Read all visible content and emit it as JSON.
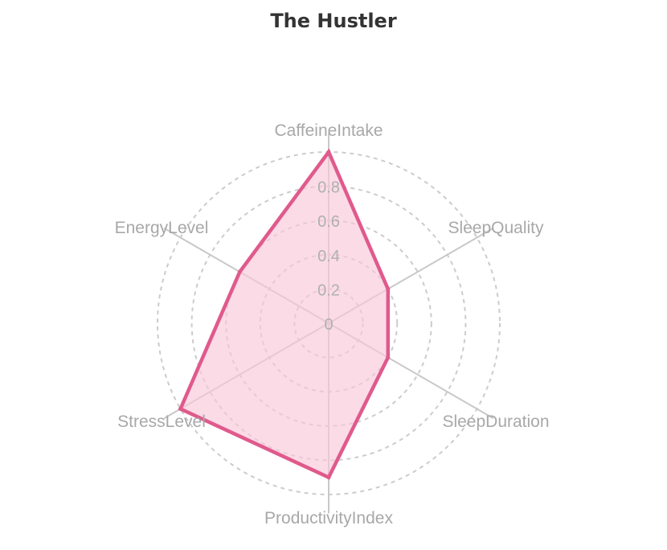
{
  "chart_data": {
    "type": "radar",
    "title": "The Hustler",
    "axes": [
      "CaffeineIntake",
      "SleepQuality",
      "SleepDuration",
      "ProductivityIndex",
      "StressLevel",
      "EnergyLevel"
    ],
    "rlim": [
      0,
      1
    ],
    "ticks": [
      "0",
      "0.2",
      "0.4",
      "0.6",
      "0.8"
    ],
    "tick_values": [
      0,
      0.2,
      0.4,
      0.6,
      0.8
    ],
    "grid": true,
    "series": [
      {
        "values": [
          1.0,
          0.4,
          0.4,
          0.9,
          1.0,
          0.6
        ]
      }
    ],
    "colors": {
      "line": "#e05a8c",
      "fill": "#f7c7d9",
      "grid": "#cccccc",
      "spoke": "#c8c8c8"
    }
  }
}
